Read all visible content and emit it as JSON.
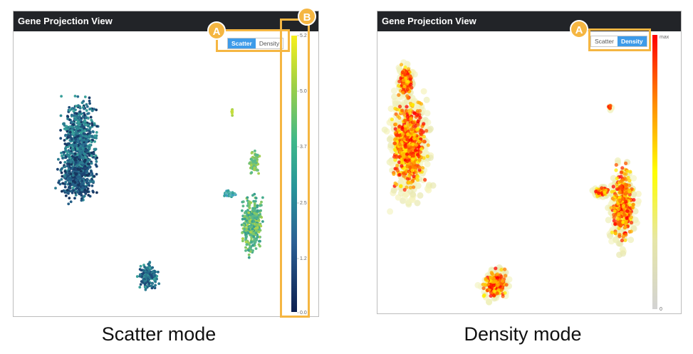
{
  "panels": [
    {
      "title": "Gene Projection View",
      "caption": "Scatter mode",
      "toggle": {
        "options": [
          "Scatter",
          "Density"
        ],
        "selected": "Scatter"
      },
      "colorbar": {
        "ticks": [
          "5.2",
          "5.0",
          "3.7",
          "2.5",
          "1.2",
          "0.0"
        ],
        "low_color": "#0c1f4f",
        "high_color": "#f7f01c"
      },
      "badges": [
        "A",
        "B"
      ]
    },
    {
      "title": "Gene Projection View",
      "caption": "Density mode",
      "toggle": {
        "options": [
          "Scatter",
          "Density"
        ],
        "selected": "Density"
      },
      "colorbar": {
        "ticks": [
          "max",
          "0"
        ],
        "low_color": "#d3d3d3",
        "high_color": "#ff0000"
      },
      "badges": [
        "A"
      ]
    }
  ],
  "highlight_color": "#f5b642",
  "accent_color": "#3d9be9"
}
